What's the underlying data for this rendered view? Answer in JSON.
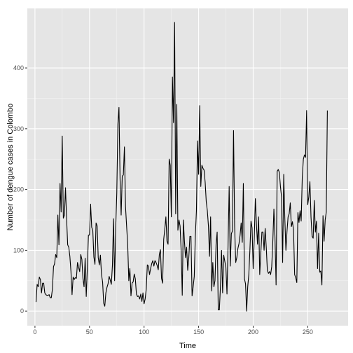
{
  "chart_data": {
    "type": "line",
    "title": "",
    "xlabel": "Time",
    "ylabel": "Number of dengue cases in Colombo",
    "xlim": [
      -7,
      287
    ],
    "ylim": [
      -24,
      498
    ],
    "x_ticks": [
      0,
      50,
      100,
      150,
      200,
      250
    ],
    "y_ticks": [
      0,
      100,
      200,
      300,
      400
    ],
    "grid": true,
    "background": "#e5e5e5",
    "line_color": "#000000",
    "x_start": 1,
    "series": [
      {
        "values": [
          15,
          44,
          40,
          56,
          52,
          30,
          46,
          46,
          30,
          27,
          26,
          26,
          27,
          22,
          22,
          36,
          73,
          78,
          93,
          88,
          158,
          109,
          210,
          163,
          288,
          153,
          158,
          203,
          152,
          109,
          105,
          90,
          65,
          27,
          56,
          52,
          55,
          54,
          80,
          72,
          65,
          93,
          85,
          54,
          40,
          87,
          24,
          70,
          125,
          125,
          176,
          138,
          133,
          89,
          77,
          145,
          140,
          88,
          76,
          92,
          60,
          48,
          13,
          8,
          30,
          39,
          45,
          57,
          51,
          44,
          75,
          152,
          50,
          135,
          194,
          307,
          335,
          218,
          158,
          222,
          224,
          270,
          172,
          140,
          110,
          50,
          70,
          25,
          46,
          48,
          61,
          53,
          28,
          24,
          25,
          20,
          28,
          16,
          30,
          12,
          20,
          36,
          76,
          74,
          60,
          70,
          78,
          83,
          74,
          83,
          80,
          75,
          68,
          93,
          101,
          54,
          46,
          118,
          135,
          155,
          115,
          110,
          250,
          240,
          155,
          385,
          310,
          475,
          160,
          340,
          133,
          150,
          140,
          100,
          26,
          150,
          115,
          88,
          105,
          67,
          88,
          123,
          123,
          25,
          40,
          57,
          124,
          165,
          280,
          225,
          338,
          205,
          240,
          235,
          232,
          212,
          180,
          165,
          140,
          90,
          155,
          33,
          80,
          40,
          50,
          110,
          130,
          2,
          2,
          40,
          100,
          30,
          92,
          82,
          72,
          28,
          110,
          205,
          74,
          127,
          132,
          297,
          140,
          80,
          88,
          103,
          111,
          125,
          145,
          113,
          210,
          53,
          45,
          0,
          40,
          60,
          100,
          148,
          137,
          70,
          120,
          185,
          143,
          110,
          155,
          60,
          95,
          130,
          130,
          100,
          136,
          105,
          67,
          62,
          65,
          60,
          73,
          115,
          168,
          121,
          43,
          230,
          233,
          228,
          205,
          188,
          80,
          225,
          153,
          100,
          131,
          155,
          160,
          178,
          139,
          147,
          133,
          60,
          55,
          47,
          162,
          146,
          165,
          148,
          220,
          250,
          257,
          253,
          330,
          175,
          188,
          213,
          155,
          123,
          120,
          182,
          130,
          148,
          70,
          128,
          64,
          66,
          43,
          157,
          115,
          150,
          163,
          330
        ]
      }
    ]
  }
}
